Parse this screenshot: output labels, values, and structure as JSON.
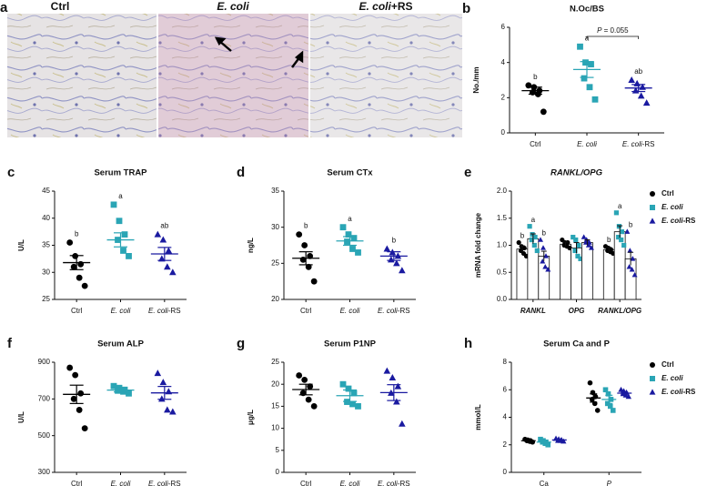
{
  "image_panel": {
    "panel": "a",
    "labels": [
      "Ctrl",
      "E. coli",
      "E. coli+RS"
    ]
  },
  "chart_data": [
    {
      "type": "dot",
      "panel": "b",
      "title": "N.Oc/BS",
      "ylabel": "No./mm",
      "categories": [
        "Ctrl",
        "E. coli",
        "E. coli-RS"
      ],
      "colors": [
        "#000000",
        "#2aa5b5",
        "#1a1aa0"
      ],
      "markers": [
        "circle",
        "square",
        "triangle"
      ],
      "points": [
        [
          2.7,
          2.6,
          2.4,
          2.3,
          2.2,
          1.2
        ],
        [
          4.9,
          4.0,
          3.9,
          3.1,
          2.6,
          1.9
        ],
        [
          3.0,
          2.8,
          2.6,
          2.4,
          2.1,
          1.7
        ]
      ],
      "means": [
        2.4,
        3.6,
        2.55
      ],
      "sems": [
        0.2,
        0.45,
        0.2
      ],
      "letters": [
        "b",
        "a",
        "ab"
      ],
      "annotation": "P = 0.055",
      "ylim": [
        0,
        6
      ],
      "yticks": [
        0,
        2,
        4,
        6
      ]
    },
    {
      "type": "dot",
      "panel": "c",
      "title": "Serum TRAP",
      "ylabel": "U/L",
      "categories": [
        "Ctrl",
        "E. coli",
        "E. coli-RS"
      ],
      "colors": [
        "#000000",
        "#2aa5b5",
        "#1a1aa0"
      ],
      "markers": [
        "circle",
        "square",
        "triangle"
      ],
      "points": [
        [
          35.5,
          33,
          31.5,
          31,
          29,
          27.5
        ],
        [
          42.5,
          39.5,
          37,
          36,
          34,
          33
        ],
        [
          37,
          36,
          34,
          32.5,
          31,
          30
        ]
      ],
      "means": [
        31.8,
        36,
        33.4
      ],
      "sems": [
        1.3,
        1.3,
        1.2
      ],
      "letters": [
        "b",
        "a",
        "ab"
      ],
      "ylim": [
        25,
        45
      ],
      "yticks": [
        25,
        30,
        35,
        40,
        45
      ]
    },
    {
      "type": "dot",
      "panel": "d",
      "title": "Serum CTx",
      "ylabel": "ng/L",
      "categories": [
        "Ctrl",
        "E. coli",
        "E. coli-RS"
      ],
      "colors": [
        "#000000",
        "#2aa5b5",
        "#1a1aa0"
      ],
      "markers": [
        "circle",
        "square",
        "triangle"
      ],
      "points": [
        [
          29,
          27.5,
          26,
          25.5,
          24.5,
          22.5
        ],
        [
          30,
          29,
          28.5,
          28,
          27,
          26.5
        ],
        [
          27,
          26.5,
          26,
          25.5,
          25,
          24
        ]
      ],
      "means": [
        25.7,
        28.1,
        26
      ],
      "sems": [
        0.9,
        0.6,
        0.6
      ],
      "letters": [
        "b",
        "a",
        "b"
      ],
      "ylim": [
        20,
        35
      ],
      "yticks": [
        20,
        25,
        30,
        35
      ]
    },
    {
      "type": "bar",
      "panel": "e",
      "title": "RANKL/OPG",
      "ylabel": "mRNA fold change",
      "italic_labels": true,
      "legend": "right",
      "categories": [
        "RANKL",
        "OPG",
        "RANKL/OPG"
      ],
      "series": [
        {
          "name": "Ctrl",
          "color": "#000000",
          "marker": "circle",
          "values": [
            0.93,
            1.02,
            0.92
          ],
          "errors": [
            0.06,
            0.04,
            0.04
          ],
          "points": [
            [
              1.05,
              0.98,
              0.95,
              0.9,
              0.85,
              0.8
            ],
            [
              1.1,
              1.05,
              1.05,
              1.0,
              0.98,
              0.95
            ],
            [
              0.98,
              0.95,
              0.92,
              0.9,
              0.88,
              0.85
            ]
          ],
          "letters": [
            "b",
            null,
            "b"
          ]
        },
        {
          "name": "E. coli",
          "color": "#2aa5b5",
          "marker": "square",
          "values": [
            1.12,
            0.95,
            1.25
          ],
          "errors": [
            0.09,
            0.1,
            0.11
          ],
          "points": [
            [
              1.35,
              1.2,
              1.15,
              1.1,
              1.0,
              0.9
            ],
            [
              1.15,
              1.1,
              1.0,
              0.9,
              0.8,
              0.75
            ],
            [
              1.6,
              1.35,
              1.25,
              1.15,
              1.1,
              1.0
            ]
          ],
          "letters": [
            "a",
            null,
            "a"
          ]
        },
        {
          "name": "E. coli-RS",
          "color": "#1a1aa0",
          "marker": "triangle",
          "values": [
            0.8,
            1.05,
            0.75
          ],
          "errors": [
            0.09,
            0.05,
            0.12
          ],
          "points": [
            [
              1.1,
              0.95,
              0.8,
              0.7,
              0.6,
              0.55
            ],
            [
              1.15,
              1.1,
              1.05,
              1.05,
              1.0,
              0.95
            ],
            [
              1.25,
              0.9,
              0.75,
              0.6,
              0.55,
              0.45
            ]
          ],
          "letters": [
            "b",
            null,
            "b"
          ]
        }
      ],
      "ylim": [
        0,
        2
      ],
      "yticks": [
        {
          "value": 0,
          "label": "0.0"
        },
        0.5,
        {
          "value": 1,
          "label": "1.0"
        },
        1.5,
        {
          "value": 2,
          "label": "2.0"
        }
      ]
    },
    {
      "type": "dot",
      "panel": "f",
      "title": "Serum ALP",
      "ylabel": "U/L",
      "categories": [
        "Ctrl",
        "E. coli",
        "E. coli-RS"
      ],
      "colors": [
        "#000000",
        "#2aa5b5",
        "#1a1aa0"
      ],
      "markers": [
        "circle",
        "square",
        "triangle"
      ],
      "points": [
        [
          870,
          830,
          730,
          700,
          640,
          540
        ],
        [
          770,
          760,
          750,
          745,
          740,
          730
        ],
        [
          840,
          790,
          740,
          700,
          640,
          630
        ]
      ],
      "means": [
        725,
        748,
        733
      ],
      "sems": [
        50,
        10,
        35
      ],
      "ylim": [
        300,
        900
      ],
      "yticks": [
        300,
        500,
        700,
        900
      ]
    },
    {
      "type": "dot",
      "panel": "g",
      "title": "Serum P1NP",
      "ylabel": "μg/L",
      "categories": [
        "Ctrl",
        "E. coli",
        "E. coli-RS"
      ],
      "colors": [
        "#000000",
        "#2aa5b5",
        "#1a1aa0"
      ],
      "markers": [
        "circle",
        "square",
        "triangle"
      ],
      "points": [
        [
          22,
          21,
          19.5,
          18,
          16.5,
          15
        ],
        [
          20,
          19,
          18,
          16,
          15.5,
          15
        ],
        [
          23,
          21.5,
          19.5,
          18,
          16,
          11
        ]
      ],
      "means": [
        18.8,
        17.4,
        18.1
      ],
      "sems": [
        1.2,
        1.3,
        1.8
      ],
      "ylim": [
        0,
        25
      ],
      "yticks": [
        0,
        5,
        10,
        15,
        20,
        25
      ]
    },
    {
      "type": "dot",
      "panel": "h",
      "title": "Serum Ca and P",
      "ylabel": "mmol/L",
      "legend": "right",
      "categories": [
        "Ca",
        "P"
      ],
      "series": [
        {
          "name": "Ctrl",
          "color": "#000000",
          "marker": "circle",
          "points": [
            [
              2.4,
              2.35,
              2.3,
              2.3,
              2.25,
              2.2
            ],
            [
              6.5,
              5.8,
              5.5,
              5.3,
              5.0,
              4.5
            ]
          ],
          "means": [
            2.3,
            5.4
          ],
          "sems": [
            0.03,
            0.3
          ]
        },
        {
          "name": "E. coli",
          "color": "#2aa5b5",
          "marker": "square",
          "points": [
            [
              2.4,
              2.3,
              2.2,
              2.2,
              2.1,
              2.0
            ],
            [
              6.0,
              5.7,
              5.3,
              5.0,
              4.8,
              4.5
            ]
          ],
          "means": [
            2.2,
            5.3
          ],
          "sems": [
            0.06,
            0.3
          ]
        },
        {
          "name": "E. coli-RS",
          "color": "#1a1aa0",
          "marker": "triangle",
          "points": [
            [
              2.45,
              2.4,
              2.35,
              2.3,
              2.3,
              2.25
            ],
            [
              6.0,
              5.9,
              5.8,
              5.7,
              5.6,
              5.5
            ]
          ],
          "means": [
            2.35,
            5.75
          ],
          "sems": [
            0.03,
            0.08
          ]
        }
      ],
      "ylim": [
        0,
        8
      ],
      "yticks": [
        0,
        2,
        4,
        6,
        8
      ]
    }
  ]
}
